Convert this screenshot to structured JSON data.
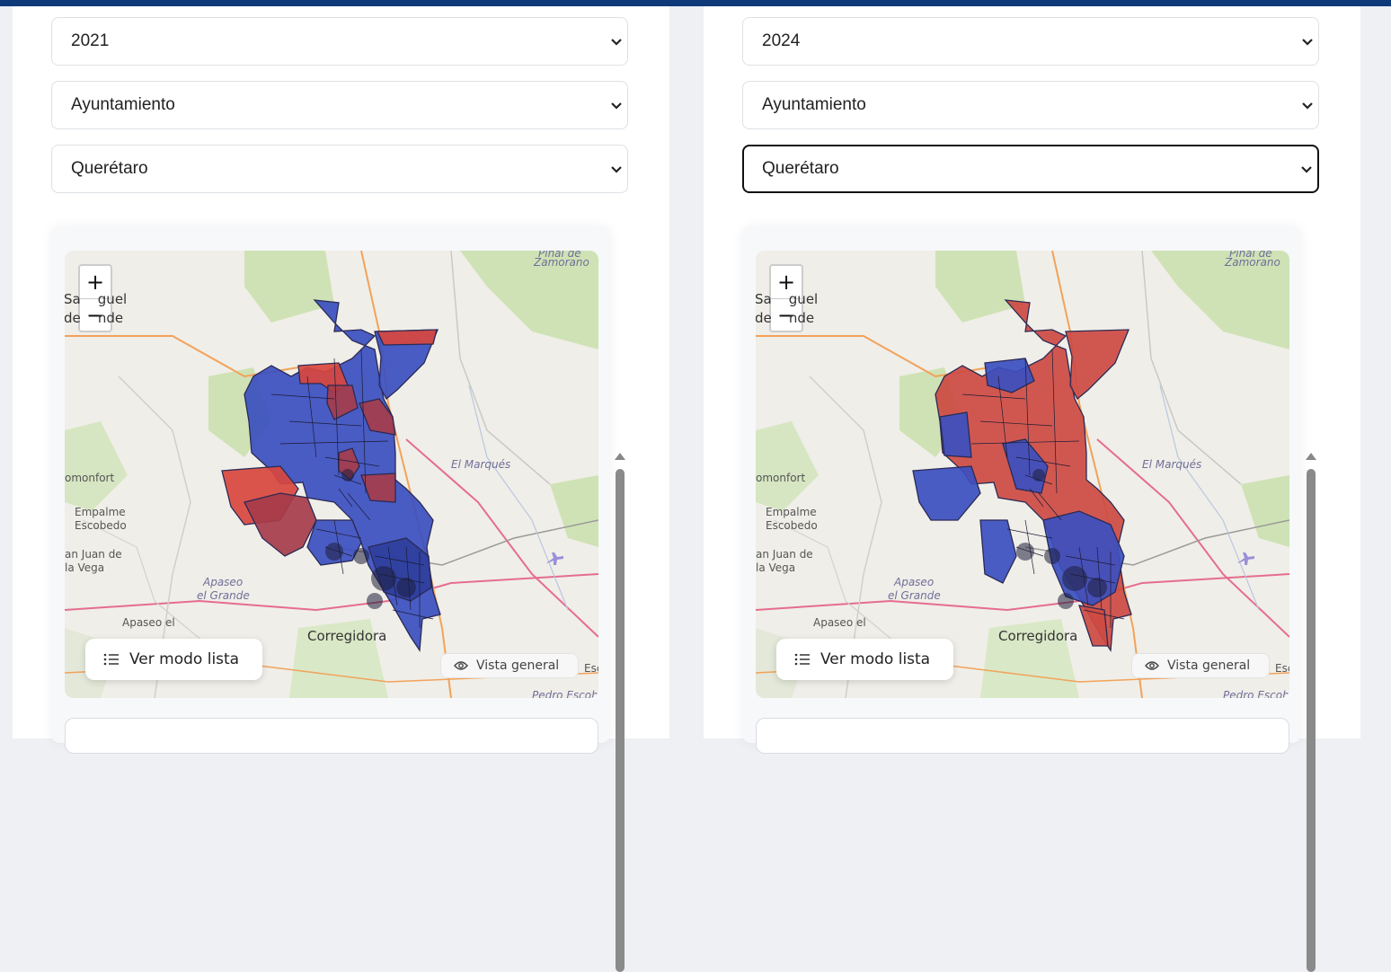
{
  "left": {
    "year": "2021",
    "election": "Ayuntamiento",
    "municipality": "Querétaro"
  },
  "right": {
    "year": "2024",
    "election": "Ayuntamiento",
    "municipality": "Querétaro"
  },
  "map": {
    "zoom_in": "+",
    "zoom_out": "−",
    "labels": {
      "zamorano_1": "Pinal de",
      "zamorano_2": "Zamorano",
      "san_miguel_1": "Sa    guel",
      "san_miguel_2": "de    nde",
      "el_marques": "El Marqués",
      "comonfort": "omonfort",
      "empalme_1": "Empalme",
      "empalme_2": "Escobedo",
      "juan_vega_1": "an Juan de",
      "juan_vega_2": "la Vega",
      "apaseo_grande_1": "Apaseo",
      "apaseo_grande_2": "el Grande",
      "apaseo_alto": "Apaseo el",
      "corregidora": "Corregidora",
      "escob": "Esc",
      "pedro": "Pedro Escob"
    },
    "list_button": "Ver modo lista",
    "overview_button": "Vista general"
  },
  "colors": {
    "party_blue": "#3b4fbf",
    "party_red": "#d9463e",
    "header_bar": "#0e3a7a"
  }
}
